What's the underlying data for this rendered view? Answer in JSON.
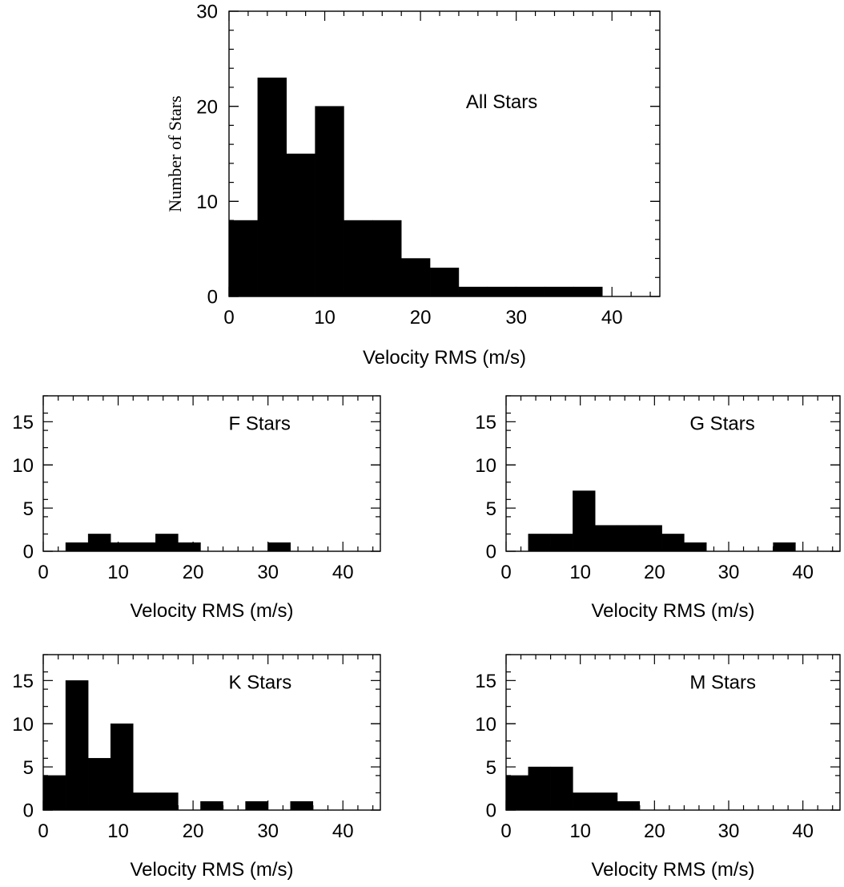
{
  "chart_data": [
    {
      "type": "bar",
      "panel": "all",
      "label": "All Stars",
      "xlabel": "Velocity RMS (m/s)",
      "ylabel": "Number of Stars",
      "xlim": [
        0,
        45
      ],
      "ylim": [
        0,
        30
      ],
      "x_ticks": [
        0,
        10,
        20,
        30,
        40
      ],
      "y_ticks": [
        0,
        10,
        20,
        30
      ],
      "bin_width": 3,
      "bins": [
        0,
        3,
        6,
        9,
        12,
        15,
        18,
        21,
        24,
        27,
        30,
        33,
        36
      ],
      "values": [
        8,
        23,
        15,
        20,
        8,
        8,
        4,
        3,
        1,
        1,
        1,
        1,
        1
      ]
    },
    {
      "type": "bar",
      "panel": "f",
      "label": "F Stars",
      "xlabel": "Velocity RMS (m/s)",
      "ylabel": "",
      "xlim": [
        0,
        45
      ],
      "ylim": [
        0,
        18
      ],
      "x_ticks": [
        0,
        10,
        20,
        30,
        40
      ],
      "y_ticks": [
        0,
        5,
        10,
        15
      ],
      "bin_width": 3,
      "bins": [
        3,
        6,
        9,
        12,
        15,
        18,
        30
      ],
      "values": [
        1,
        2,
        1,
        1,
        2,
        1,
        1
      ]
    },
    {
      "type": "bar",
      "panel": "g",
      "label": "G Stars",
      "xlabel": "Velocity RMS (m/s)",
      "ylabel": "",
      "xlim": [
        0,
        45
      ],
      "ylim": [
        0,
        18
      ],
      "x_ticks": [
        0,
        10,
        20,
        30,
        40
      ],
      "y_ticks": [
        0,
        5,
        10,
        15
      ],
      "bin_width": 3,
      "bins": [
        3,
        6,
        9,
        12,
        15,
        18,
        21,
        24,
        36
      ],
      "values": [
        2,
        2,
        7,
        3,
        3,
        3,
        2,
        1,
        1
      ]
    },
    {
      "type": "bar",
      "panel": "k",
      "label": "K Stars",
      "xlabel": "Velocity RMS (m/s)",
      "ylabel": "",
      "xlim": [
        0,
        45
      ],
      "ylim": [
        0,
        18
      ],
      "x_ticks": [
        0,
        10,
        20,
        30,
        40
      ],
      "y_ticks": [
        0,
        5,
        10,
        15
      ],
      "bin_width": 3,
      "bins": [
        0,
        3,
        6,
        9,
        12,
        15,
        21,
        27,
        33
      ],
      "values": [
        4,
        15,
        6,
        10,
        2,
        2,
        1,
        1,
        1
      ]
    },
    {
      "type": "bar",
      "panel": "m",
      "label": "M Stars",
      "xlabel": "Velocity RMS (m/s)",
      "ylabel": "",
      "xlim": [
        0,
        45
      ],
      "ylim": [
        0,
        18
      ],
      "x_ticks": [
        0,
        10,
        20,
        30,
        40
      ],
      "y_ticks": [
        0,
        5,
        10,
        15
      ],
      "bin_width": 3,
      "bins": [
        0,
        3,
        6,
        9,
        12,
        15
      ],
      "values": [
        4,
        5,
        5,
        2,
        2,
        1
      ]
    }
  ],
  "colors": {
    "bar": "#000000",
    "axes": "#000000",
    "background": "#ffffff"
  }
}
